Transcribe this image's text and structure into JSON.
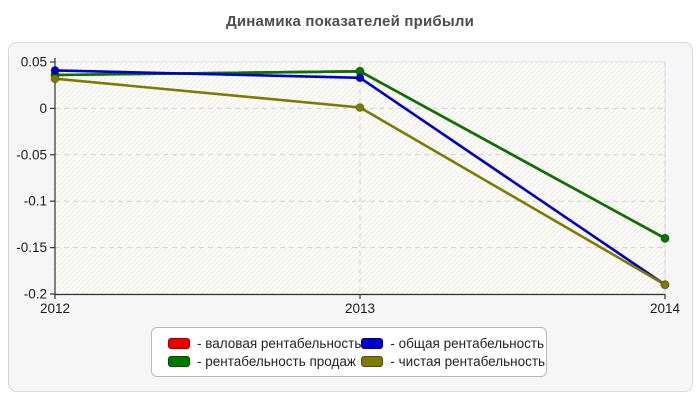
{
  "title": "Динамика показателей прибыли",
  "chart_data": {
    "type": "line",
    "x": [
      "2012",
      "2013",
      "2014"
    ],
    "series": [
      {
        "name": "валовая рентабельность",
        "color": "#ee0000",
        "values": [
          0.036,
          0.04,
          -0.14
        ]
      },
      {
        "name": "рентабельность продаж",
        "color": "#007700",
        "values": [
          0.036,
          0.04,
          -0.14
        ]
      },
      {
        "name": "общая рентабельность",
        "color": "#0000cc",
        "values": [
          0.041,
          0.033,
          -0.19
        ]
      },
      {
        "name": "чистая рентабельность",
        "color": "#7e7b00",
        "values": [
          0.032,
          0.001,
          -0.19
        ]
      }
    ],
    "ylim": [
      -0.2,
      0.05
    ],
    "yticks": [
      0.05,
      0,
      -0.05,
      -0.1,
      -0.15,
      -0.2
    ],
    "ytick_labels": [
      "0.05",
      "0",
      "-0.05",
      "-0.1",
      "-0.15",
      "-0.2"
    ],
    "grid": "dashed",
    "legend_position": "bottom"
  },
  "legend": {
    "items": [
      {
        "label": "- валовая рентабельность",
        "color": "#ee0000"
      },
      {
        "label": "- общая рентабельность",
        "color": "#0000cc"
      },
      {
        "label": "- рентабельность продаж",
        "color": "#007700"
      },
      {
        "label": "- чистая рентабельность",
        "color": "#7e7b00"
      }
    ]
  }
}
